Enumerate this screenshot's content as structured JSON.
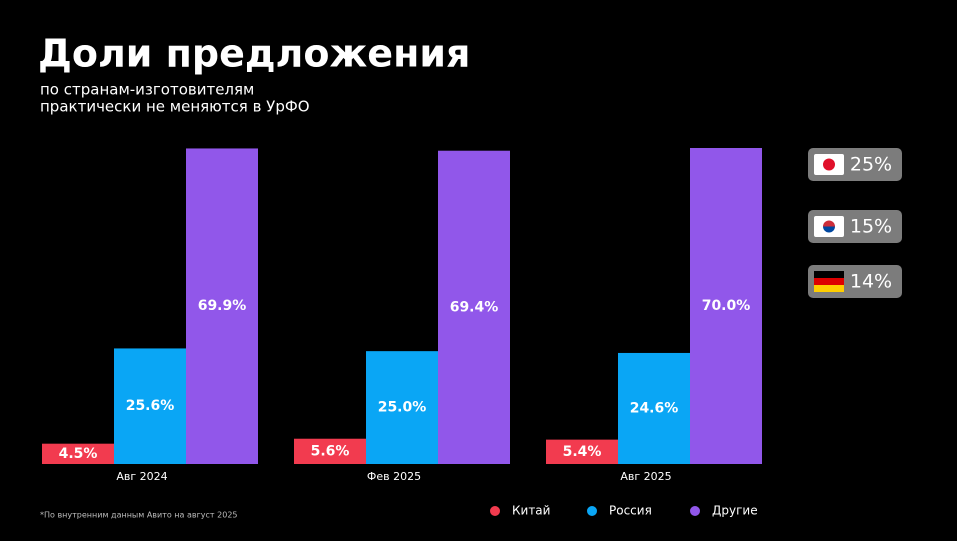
{
  "chart_data": {
    "type": "bar",
    "title": "Доли предложения",
    "subtitle": [
      "по странам-изготовителям",
      "практически не меняются в УрФО"
    ],
    "categories": [
      "Авг 2024",
      "Фев 2025",
      "Авг 2025"
    ],
    "series": [
      {
        "name": "Китай",
        "color": "#f23b4f",
        "values": [
          4.5,
          5.6,
          5.4
        ],
        "value_labels": [
          "4.5%",
          "5.6%",
          "5.4%"
        ]
      },
      {
        "name": "Россия",
        "color": "#0aa6f5",
        "values": [
          25.6,
          25.0,
          24.6
        ],
        "value_labels": [
          "25.6%",
          "25.0%",
          "24.6%"
        ]
      },
      {
        "name": "Другие",
        "color": "#9157ea",
        "values": [
          69.9,
          69.4,
          70.0
        ],
        "value_labels": [
          "69.9%",
          "69.4%",
          "70.0%"
        ]
      }
    ],
    "ylim": [
      0,
      70
    ],
    "badges": [
      "25%",
      "15%",
      "14%"
    ],
    "footnote": "*По внутренним данным Авито на август 2025"
  }
}
